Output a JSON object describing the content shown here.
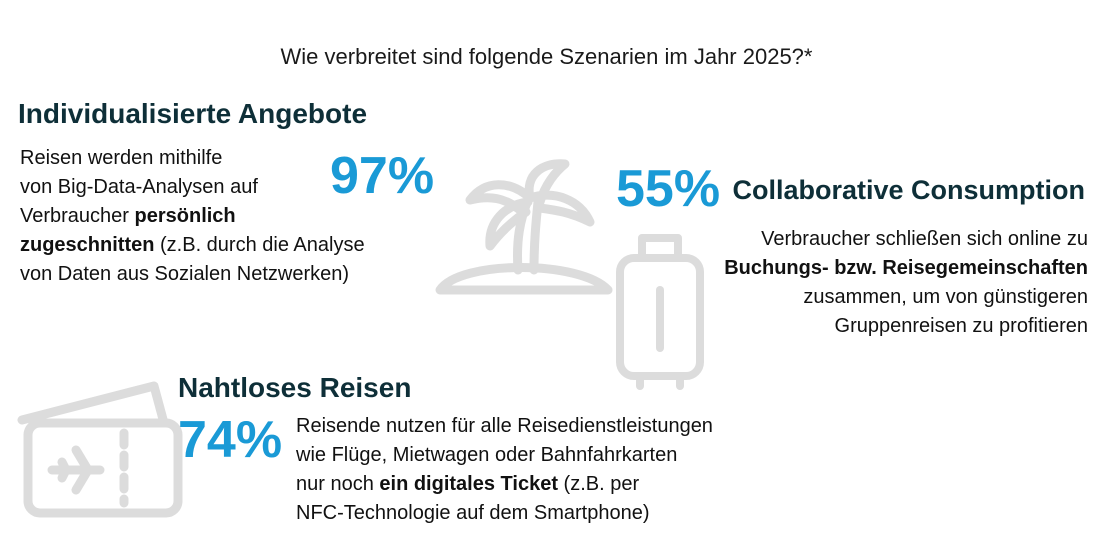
{
  "title": "Wie verbreitet sind folgende Szenarien im Jahr 2025?*",
  "colors": {
    "accent": "#1a9ad6",
    "heading": "#0e2f38",
    "icon": "#dcdcdc"
  },
  "icons": [
    "palm-island-icon",
    "suitcase-icon",
    "ticket-icon"
  ],
  "scenarios": {
    "individual": {
      "heading": "Individualisierte Angebote",
      "percent": "97%",
      "text_1": "Reisen werden mithilfe",
      "text_2": "von Big-Data-Analysen auf",
      "text_3": "Verbraucher ",
      "text_3_bold": "persönlich",
      "text_4_bold": "zugeschnitten",
      "text_4": " (z.B. durch die Analyse",
      "text_5": "von Daten aus Sozialen Netzwerken)"
    },
    "collaborative": {
      "heading": "Collaborative Consumption",
      "percent": "55%",
      "text_1": "Verbraucher schließen sich online zu",
      "text_2_bold": "Buchungs- bzw. Reisegemeinschaften",
      "text_3": "zusammen, um von günstigeren",
      "text_4": "Gruppenreisen zu profitieren"
    },
    "seamless": {
      "heading": "Nahtloses Reisen",
      "percent": "74%",
      "text_1": "Reisende nutzen für alle Reisedienstleistungen",
      "text_2": "wie Flüge, Mietwagen oder Bahnfahrkarten",
      "text_3": "nur noch ",
      "text_3_bold": "ein digitales Ticket",
      "text_3_end": " (z.B. per",
      "text_4": "NFC-Technologie auf dem Smartphone)"
    }
  }
}
